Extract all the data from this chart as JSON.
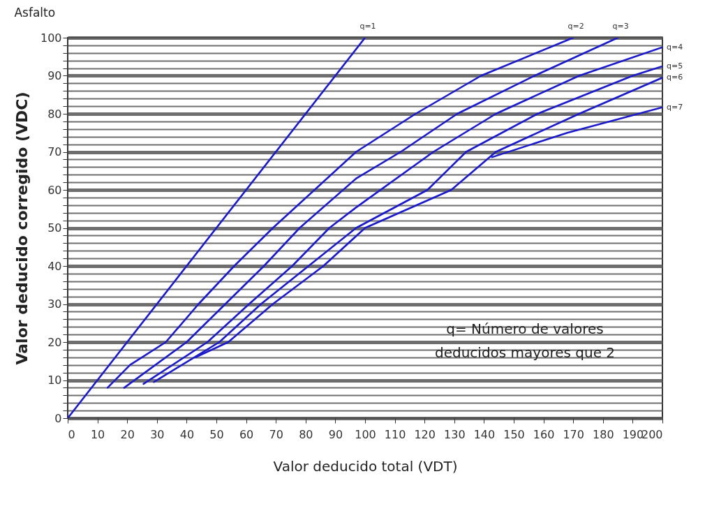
{
  "chart_data": {
    "type": "line",
    "title": "Asfalto",
    "xlabel": "Valor deducido total (VDT)",
    "ylabel": "Valor deducido corregido (VDC)",
    "xlim": [
      0,
      200
    ],
    "ylim": [
      0,
      100
    ],
    "xticks": [
      0,
      10,
      20,
      30,
      40,
      50,
      60,
      70,
      80,
      90,
      100,
      110,
      120,
      130,
      140,
      150,
      160,
      170,
      180,
      190,
      200
    ],
    "yticks": [
      0,
      {
        "value": 2,
        "label": null
      },
      {
        "value": 4,
        "label": null
      },
      {
        "value": 6,
        "label": null
      },
      {
        "value": 8,
        "label": null
      },
      10,
      {
        "value": 12,
        "label": null
      },
      {
        "value": 14,
        "label": null
      },
      {
        "value": 16,
        "label": null
      },
      {
        "value": 18,
        "label": null
      },
      20,
      {
        "value": 22,
        "label": null
      },
      {
        "value": 24,
        "label": null
      },
      {
        "value": 26,
        "label": null
      },
      {
        "value": 28,
        "label": null
      },
      30,
      {
        "value": 32,
        "label": null
      },
      {
        "value": 34,
        "label": null
      },
      {
        "value": 36,
        "label": null
      },
      {
        "value": 38,
        "label": null
      },
      40,
      {
        "value": 42,
        "label": null
      },
      {
        "value": 44,
        "label": null
      },
      {
        "value": 46,
        "label": null
      },
      {
        "value": 48,
        "label": null
      },
      50,
      {
        "value": 52,
        "label": null
      },
      {
        "value": 54,
        "label": null
      },
      {
        "value": 56,
        "label": null
      },
      {
        "value": 58,
        "label": null
      },
      60,
      {
        "value": 62,
        "label": null
      },
      {
        "value": 64,
        "label": null
      },
      {
        "value": 66,
        "label": null
      },
      {
        "value": 68,
        "label": null
      },
      70,
      {
        "value": 72,
        "label": null
      },
      {
        "value": 74,
        "label": null
      },
      {
        "value": 76,
        "label": null
      },
      {
        "value": 78,
        "label": null
      },
      80,
      {
        "value": 82,
        "label": null
      },
      {
        "value": 84,
        "label": null
      },
      {
        "value": 86,
        "label": null
      },
      {
        "value": 88,
        "label": null
      },
      90,
      {
        "value": 92,
        "label": null
      },
      {
        "value": 94,
        "label": null
      },
      {
        "value": 96,
        "label": null
      },
      {
        "value": 98,
        "label": null
      },
      100
    ],
    "grid": "y",
    "legend": false,
    "marker": "none",
    "line_style": "solid",
    "series": [
      {
        "name": "q=1",
        "color": "#1a1acc",
        "x": [
          0,
          100
        ],
        "values": [
          0,
          100
        ]
      },
      {
        "name": "q=2",
        "color": "#1a1acc",
        "x": [
          13.4,
          21,
          33,
          44,
          56,
          69,
          97,
          117,
          139,
          170
        ],
        "values": [
          8,
          14,
          20,
          30,
          40,
          50,
          70,
          80,
          90,
          100
        ]
      },
      {
        "name": "q=3",
        "color": "#1a1acc",
        "x": [
          19,
          40,
          53,
          66,
          78,
          97,
          112,
          131,
          157,
          185
        ],
        "values": [
          8,
          20,
          30,
          40,
          50,
          63,
          70,
          80,
          90,
          100
        ]
      },
      {
        "name": "q=4",
        "color": "#1a1acc",
        "x": [
          25.5,
          47,
          61,
          75.5,
          88,
          97,
          123,
          144,
          172,
          200
        ],
        "values": [
          9,
          20,
          30,
          40,
          50,
          55.4,
          70,
          80,
          90,
          97.5
        ]
      },
      {
        "name": "q=5",
        "color": "#1a1acc",
        "x": [
          29,
          51,
          65,
          81,
          97,
          121,
          134,
          158,
          190,
          200
        ],
        "values": [
          9.5,
          20,
          30,
          40,
          50,
          60,
          70,
          80,
          90,
          92.5
        ]
      },
      {
        "name": "q=6",
        "color": "#1a1acc",
        "x": [
          43,
          54,
          69,
          86,
          100,
          129,
          144,
          172,
          200
        ],
        "values": [
          16,
          20,
          30,
          40,
          50,
          60,
          70,
          80,
          89.5
        ]
      },
      {
        "name": "q=7",
        "color": "#1a1acc",
        "x": [
          142.7,
          168,
          200
        ],
        "values": [
          68.6,
          75,
          81.7
        ]
      }
    ],
    "annotations": [
      "q= Número de valores deducidos mayores que 2"
    ]
  }
}
